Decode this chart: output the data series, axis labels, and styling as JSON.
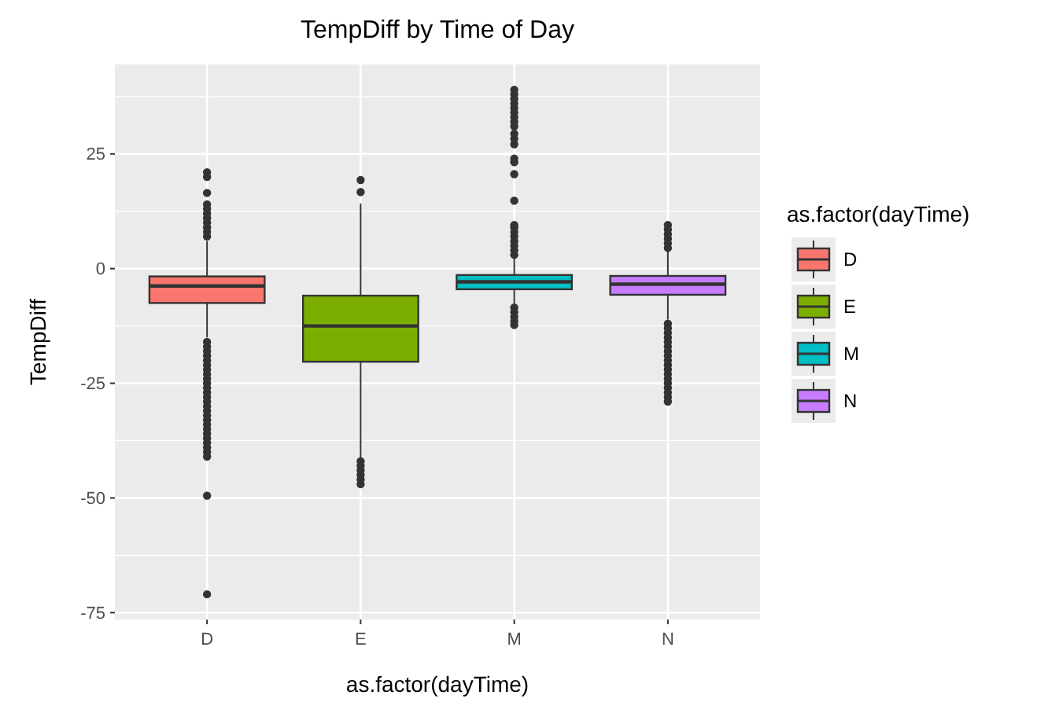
{
  "chart_data": {
    "type": "box",
    "title": "TempDiff by Time of Day",
    "xlabel": "as.factor(dayTime)",
    "ylabel": "TempDiff",
    "legend_title": "as.factor(dayTime)",
    "legend": "right",
    "grid": true,
    "categories": [
      "D",
      "E",
      "M",
      "N"
    ],
    "ylim": [
      -76.5,
      44.5
    ],
    "yticks": [
      -75,
      -50,
      -25,
      0,
      25
    ],
    "series": [
      {
        "name": "D",
        "color": "#f8766d",
        "boxes": [
          {
            "low": -15,
            "q1": -7.5,
            "median": -3.8,
            "q3": -1.7,
            "high": 6,
            "outliers": [
              7,
              8,
              9,
              10,
              11,
              12,
              13,
              14,
              16.5,
              20,
              21,
              -16,
              -17,
              -18,
              -19,
              -20,
              -21,
              -22,
              -23,
              -24,
              -25,
              -26,
              -27,
              -28,
              -29,
              -30,
              -31,
              -32,
              -33,
              -34,
              -35,
              -36,
              -37,
              -38,
              -39,
              -40,
              -41,
              -49.5,
              -71
            ]
          },
          null,
          null,
          null
        ]
      },
      {
        "name": "E",
        "color": "#7cae00",
        "boxes": [
          null,
          {
            "low": -41.2,
            "q1": -20.3,
            "median": -12.5,
            "q3": -5.9,
            "high": 14.2,
            "outliers": [
              16.7,
              19.3,
              -42,
              -43,
              -44,
              -45,
              -46,
              -47
            ]
          },
          null,
          null
        ]
      },
      {
        "name": "M",
        "color": "#00bfc4",
        "boxes": [
          null,
          null,
          {
            "low": -7.9,
            "q1": -4.5,
            "median": -2.9,
            "q3": -1.4,
            "high": 2.4,
            "outliers": [
              3,
              4,
              5,
              6,
              7,
              8,
              9,
              9.5,
              14.8,
              20.6,
              23.2,
              24,
              27.1,
              28.3,
              29.4,
              31,
              32,
              33,
              34,
              35,
              36,
              37,
              38,
              39,
              -8.5,
              -9.5,
              -10.5,
              -11.5,
              -12.3
            ]
          },
          null
        ]
      },
      {
        "name": "N",
        "color": "#c77cff",
        "boxes": [
          null,
          null,
          null,
          {
            "low": -11.1,
            "q1": -5.7,
            "median": -3.4,
            "q3": -1.6,
            "high": 4.1,
            "outliers": [
              4.5,
              5.5,
              6.5,
              7.5,
              8.5,
              9.5,
              -12,
              -13,
              -14,
              -15,
              -16,
              -17,
              -18,
              -19,
              -20,
              -21,
              -22,
              -23,
              -24,
              -25,
              -26,
              -27,
              -28,
              -29
            ]
          }
        ]
      }
    ]
  }
}
